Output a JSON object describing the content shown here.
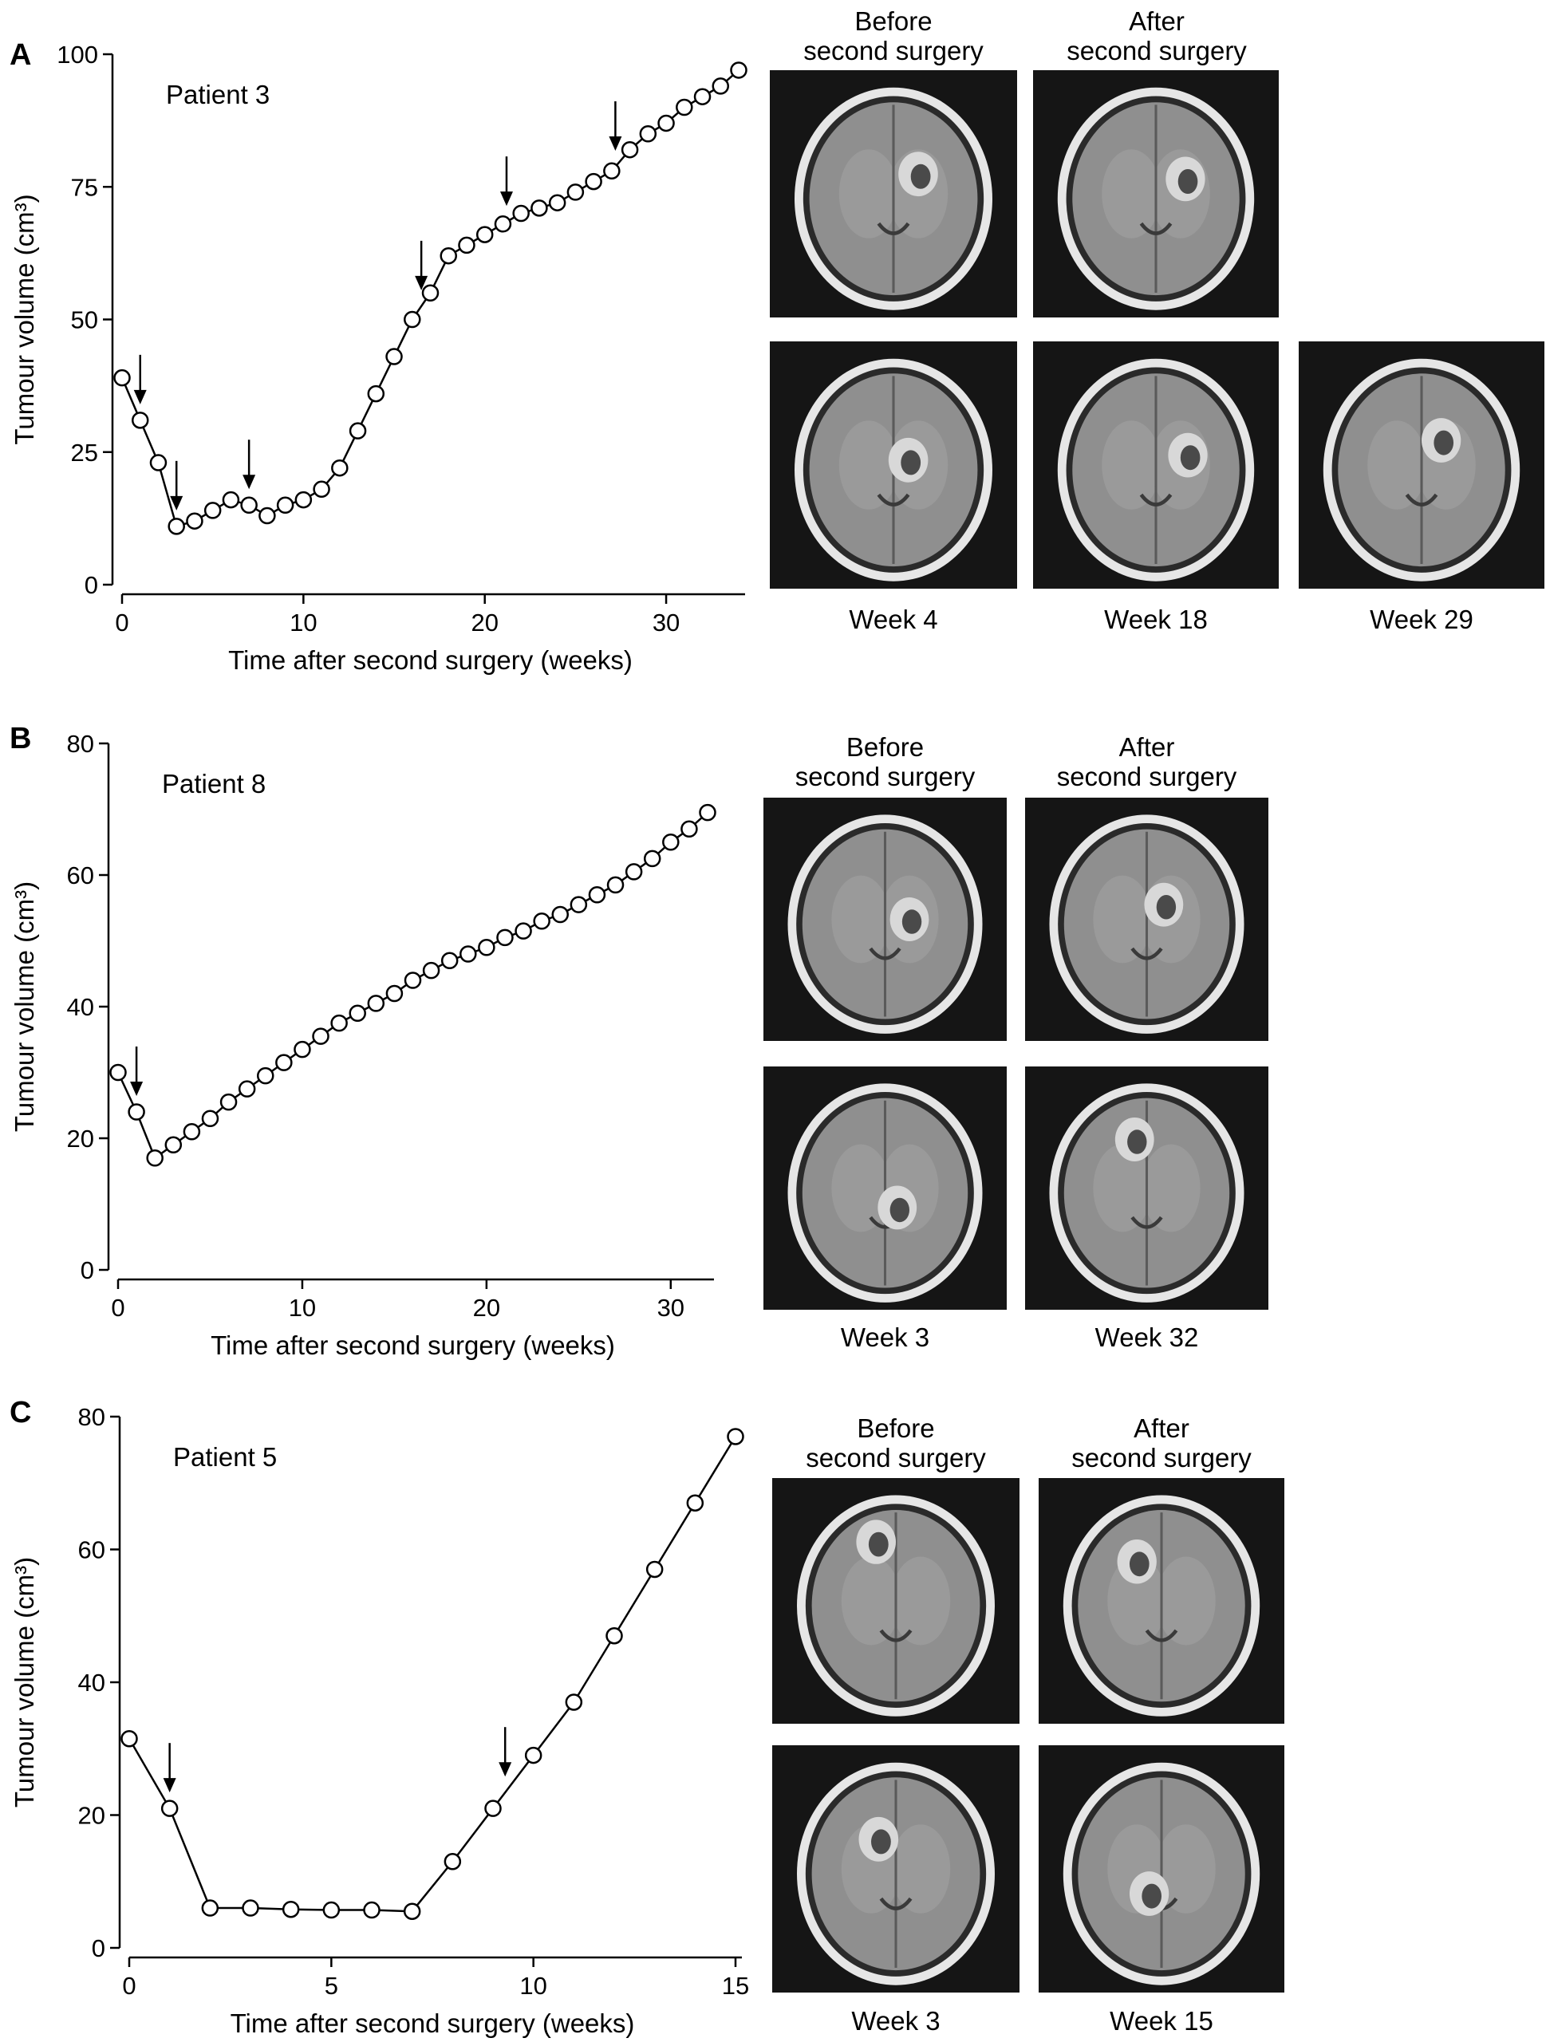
{
  "chart_data": [
    {
      "type": "line",
      "panel": "A",
      "title": "Patient 3",
      "xlabel": "Time after second surgery (weeks)",
      "ylabel": "Tumour volume (cm³)",
      "xlim": [
        0,
        34
      ],
      "ylim": [
        0,
        100
      ],
      "xticks": [
        0,
        10,
        20,
        30
      ],
      "yticks": [
        0,
        25,
        50,
        75,
        100
      ],
      "series": [
        {
          "x": [
            0,
            1,
            2,
            3,
            4,
            5,
            6,
            7,
            8,
            9,
            10,
            11,
            12,
            13,
            14,
            15,
            16,
            17,
            18,
            19,
            20,
            21,
            22,
            23,
            24,
            25,
            26,
            27,
            28,
            29,
            30,
            31,
            32,
            33,
            34
          ],
          "y": [
            39,
            31,
            23,
            11,
            12,
            14,
            16,
            15,
            13,
            15,
            16,
            18,
            22,
            29,
            36,
            43,
            50,
            55,
            62,
            64,
            66,
            68,
            70,
            71,
            72,
            74,
            76,
            78,
            82,
            85,
            87,
            90,
            92,
            94,
            97
          ]
        }
      ],
      "arrows_x": [
        1,
        3,
        7,
        16.5,
        21.2,
        27.2
      ],
      "grid": false
    },
    {
      "type": "line",
      "panel": "B",
      "title": "Patient 8",
      "xlabel": "Time after second surgery (weeks)",
      "ylabel": "Tumour volume (cm³)",
      "xlim": [
        0,
        32
      ],
      "ylim": [
        0,
        80
      ],
      "xticks": [
        0,
        10,
        20,
        30
      ],
      "yticks": [
        0,
        20,
        40,
        60,
        80
      ],
      "series": [
        {
          "x": [
            0,
            1,
            2,
            3,
            4,
            5,
            6,
            7,
            8,
            9,
            10,
            11,
            12,
            13,
            14,
            15,
            16,
            17,
            18,
            19,
            20,
            21,
            22,
            23,
            24,
            25,
            26,
            27,
            28,
            29,
            30,
            31,
            32
          ],
          "y": [
            30,
            24,
            17,
            19,
            21,
            23,
            25.5,
            27.5,
            29.5,
            31.5,
            33.5,
            35.5,
            37.5,
            39,
            40.5,
            42,
            44,
            45.5,
            47,
            48,
            49,
            50.5,
            51.5,
            53,
            54,
            55.5,
            57,
            58.5,
            60.5,
            62.5,
            65,
            67,
            69.5
          ]
        }
      ],
      "arrows_x": [
        1
      ],
      "grid": false
    },
    {
      "type": "line",
      "panel": "C",
      "title": "Patient 5",
      "xlabel": "Time after second surgery (weeks)",
      "ylabel": "Tumour volume (cm³)",
      "xlim": [
        0,
        15
      ],
      "ylim": [
        0,
        80
      ],
      "xticks": [
        0,
        5,
        10,
        15
      ],
      "yticks": [
        0,
        20,
        40,
        60,
        80
      ],
      "series": [
        {
          "x": [
            0,
            1,
            2,
            3,
            4,
            5,
            6,
            7,
            8,
            9,
            10,
            11,
            12,
            13,
            14,
            15
          ],
          "y": [
            31.5,
            21,
            6,
            6,
            5.8,
            5.7,
            5.7,
            5.5,
            13,
            21,
            29,
            37,
            47,
            57,
            67,
            77
          ]
        }
      ],
      "arrows_x": [
        1,
        9.3
      ],
      "grid": false
    }
  ],
  "panels": {
    "a": {
      "letter": "A",
      "before": [
        "Before",
        "second surgery"
      ],
      "after": [
        "After",
        "second surgery"
      ],
      "captions": [
        "Week 4",
        "Week 18",
        "Week 29"
      ]
    },
    "b": {
      "letter": "B",
      "before": [
        "Before",
        "second surgery"
      ],
      "after": [
        "After",
        "second surgery"
      ],
      "captions": [
        "Week 3",
        "Week 32"
      ]
    },
    "c": {
      "letter": "C",
      "before": [
        "Before",
        "second surgery"
      ],
      "after": [
        "After",
        "second surgery"
      ],
      "captions": [
        "Week 3",
        "Week 15"
      ]
    }
  },
  "colors": {
    "line": "#000000",
    "marker_fill": "#ffffff",
    "scan_background": "#151515"
  }
}
